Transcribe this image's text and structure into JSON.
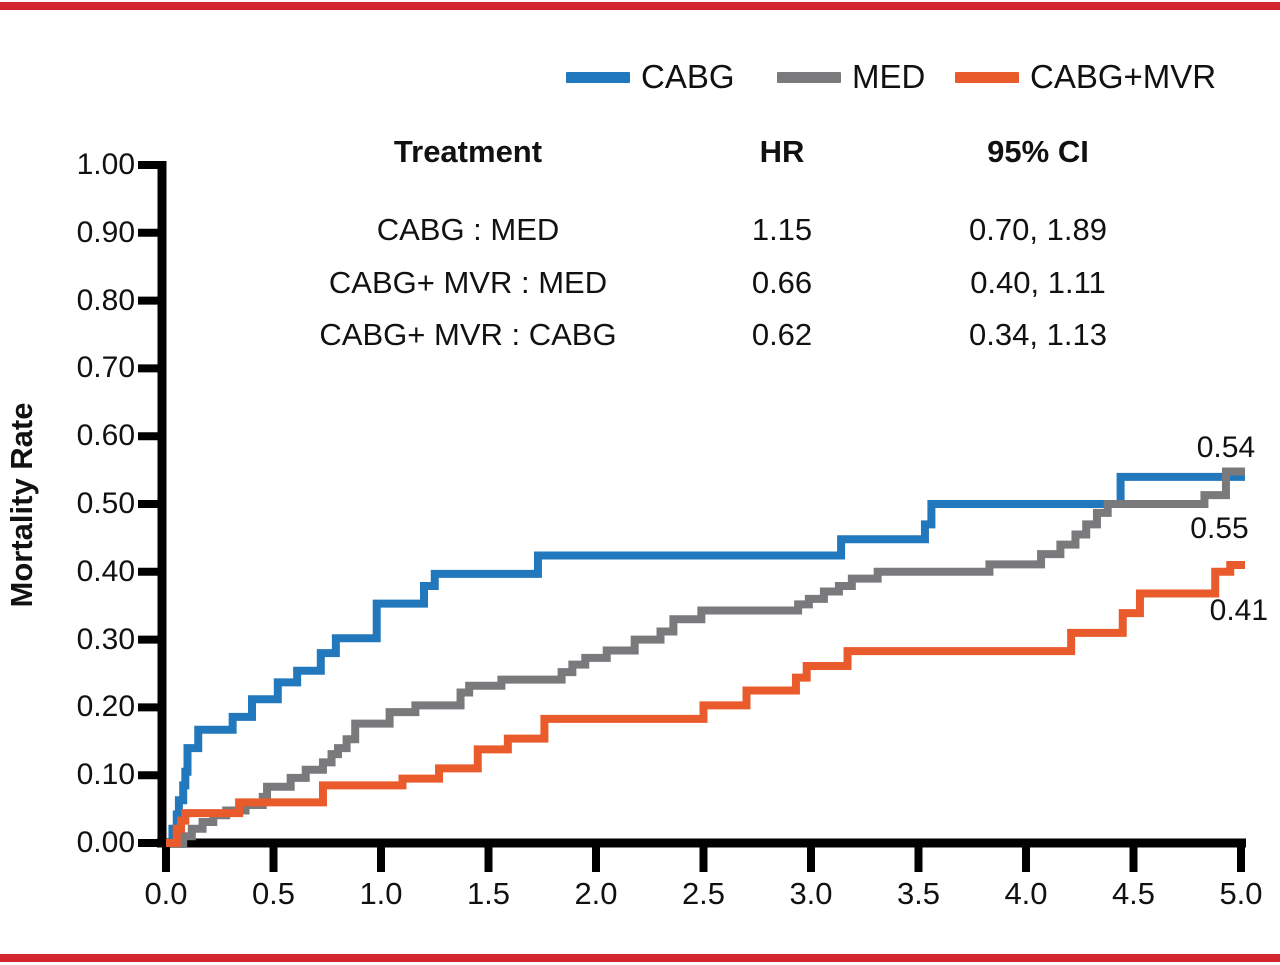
{
  "figure": {
    "accent_rule_color": "#d4262e",
    "background": "#ffffff",
    "axis_color": "#000000"
  },
  "legend": {
    "items": [
      {
        "label": "CABG",
        "color": "#2278bd"
      },
      {
        "label": "MED",
        "color": "#7a7a7d"
      },
      {
        "label": "CABG+MVR",
        "color": "#ea5b2c"
      }
    ]
  },
  "hr_table": {
    "headers": {
      "treatment": "Treatment",
      "hr": "HR",
      "ci": "95% CI"
    },
    "rows": [
      {
        "treatment": "CABG : MED",
        "hr": "1.15",
        "ci": "0.70, 1.89"
      },
      {
        "treatment": "CABG+ MVR : MED",
        "hr": "0.66",
        "ci": "0.40, 1.11"
      },
      {
        "treatment": "CABG+ MVR : CABG",
        "hr": "0.62",
        "ci": "0.34, 1.13"
      }
    ]
  },
  "chart_data": {
    "type": "line",
    "subtype": "kaplan-meier-step",
    "title": "",
    "xlabel": "",
    "ylabel": "Mortality Rate",
    "xlim": [
      0,
      5
    ],
    "ylim": [
      0,
      1
    ],
    "grid": false,
    "legend_position": "top",
    "x_ticks": [
      {
        "label": "0.0",
        "value": 0.0
      },
      {
        "label": "0.5",
        "value": 0.5
      },
      {
        "label": "1.0",
        "value": 1.0
      },
      {
        "label": "1.5",
        "value": 1.5
      },
      {
        "label": "2.0",
        "value": 2.0
      },
      {
        "label": "2.5",
        "value": 2.5
      },
      {
        "label": "3.0",
        "value": 3.0
      },
      {
        "label": "3.5",
        "value": 3.5
      },
      {
        "label": "4.0",
        "value": 4.0
      },
      {
        "label": "4.5",
        "value": 4.5
      },
      {
        "label": "5.0",
        "value": 5.0
      }
    ],
    "y_ticks": [
      {
        "label": "0.00",
        "value": 0.0
      },
      {
        "label": "0.10",
        "value": 0.1
      },
      {
        "label": "0.20",
        "value": 0.2
      },
      {
        "label": "0.30",
        "value": 0.3
      },
      {
        "label": "0.40",
        "value": 0.4
      },
      {
        "label": "0.50",
        "value": 0.5
      },
      {
        "label": "0.60",
        "value": 0.6
      },
      {
        "label": "0.70",
        "value": 0.7
      },
      {
        "label": "0.80",
        "value": 0.8
      },
      {
        "label": "0.90",
        "value": 0.9
      },
      {
        "label": "1.00",
        "value": 1.0
      }
    ],
    "series": [
      {
        "name": "CABG",
        "color": "#2278bd",
        "final_value": 0.54,
        "steps": [
          [
            0.0,
            0.0
          ],
          [
            0.03,
            0.021
          ],
          [
            0.05,
            0.042
          ],
          [
            0.06,
            0.063
          ],
          [
            0.08,
            0.085
          ],
          [
            0.09,
            0.105
          ],
          [
            0.1,
            0.14
          ],
          [
            0.15,
            0.167
          ],
          [
            0.31,
            0.186
          ],
          [
            0.4,
            0.212
          ],
          [
            0.52,
            0.237
          ],
          [
            0.61,
            0.254
          ],
          [
            0.72,
            0.28
          ],
          [
            0.79,
            0.302
          ],
          [
            0.98,
            0.353
          ],
          [
            1.2,
            0.379
          ],
          [
            1.25,
            0.397
          ],
          [
            1.73,
            0.424
          ],
          [
            3.14,
            0.448
          ],
          [
            3.53,
            0.47
          ],
          [
            3.56,
            0.5
          ],
          [
            4.44,
            0.54
          ]
        ]
      },
      {
        "name": "MED",
        "color": "#7a7a7d",
        "final_value": 0.55,
        "steps": [
          [
            0.0,
            0.0
          ],
          [
            0.08,
            0.01
          ],
          [
            0.12,
            0.021
          ],
          [
            0.17,
            0.031
          ],
          [
            0.22,
            0.041
          ],
          [
            0.28,
            0.048
          ],
          [
            0.37,
            0.056
          ],
          [
            0.45,
            0.068
          ],
          [
            0.47,
            0.083
          ],
          [
            0.58,
            0.096
          ],
          [
            0.65,
            0.108
          ],
          [
            0.73,
            0.119
          ],
          [
            0.77,
            0.131
          ],
          [
            0.8,
            0.14
          ],
          [
            0.84,
            0.153
          ],
          [
            0.88,
            0.176
          ],
          [
            1.04,
            0.193
          ],
          [
            1.16,
            0.203
          ],
          [
            1.37,
            0.222
          ],
          [
            1.41,
            0.232
          ],
          [
            1.56,
            0.241
          ],
          [
            1.84,
            0.252
          ],
          [
            1.89,
            0.263
          ],
          [
            1.95,
            0.273
          ],
          [
            2.05,
            0.284
          ],
          [
            2.18,
            0.3
          ],
          [
            2.3,
            0.312
          ],
          [
            2.36,
            0.33
          ],
          [
            2.49,
            0.343
          ],
          [
            2.94,
            0.352
          ],
          [
            2.99,
            0.36
          ],
          [
            3.06,
            0.371
          ],
          [
            3.13,
            0.379
          ],
          [
            3.19,
            0.39
          ],
          [
            3.31,
            0.4
          ],
          [
            3.83,
            0.411
          ],
          [
            4.07,
            0.426
          ],
          [
            4.16,
            0.44
          ],
          [
            4.23,
            0.455
          ],
          [
            4.28,
            0.47
          ],
          [
            4.33,
            0.487
          ],
          [
            4.38,
            0.5
          ],
          [
            4.83,
            0.513
          ],
          [
            4.93,
            0.548
          ]
        ]
      },
      {
        "name": "CABG+MVR",
        "color": "#ea5b2c",
        "final_value": 0.41,
        "steps": [
          [
            0.0,
            0.0
          ],
          [
            0.05,
            0.021
          ],
          [
            0.07,
            0.033
          ],
          [
            0.09,
            0.044
          ],
          [
            0.34,
            0.06
          ],
          [
            0.73,
            0.085
          ],
          [
            1.1,
            0.095
          ],
          [
            1.27,
            0.11
          ],
          [
            1.45,
            0.138
          ],
          [
            1.59,
            0.154
          ],
          [
            1.76,
            0.183
          ],
          [
            2.5,
            0.203
          ],
          [
            2.7,
            0.225
          ],
          [
            2.93,
            0.244
          ],
          [
            2.98,
            0.261
          ],
          [
            3.17,
            0.283
          ],
          [
            4.21,
            0.31
          ],
          [
            4.45,
            0.339
          ],
          [
            4.53,
            0.368
          ],
          [
            4.88,
            0.4
          ],
          [
            4.95,
            0.41
          ]
        ]
      }
    ],
    "end_labels": [
      {
        "text": "0.54",
        "series": "CABG",
        "x": 4.93,
        "y": 0.582
      },
      {
        "text": "0.55",
        "series": "MED",
        "x": 4.9,
        "y": 0.463
      },
      {
        "text": "0.41",
        "series": "CABG+MVR",
        "x": 4.99,
        "y": 0.342
      }
    ]
  }
}
